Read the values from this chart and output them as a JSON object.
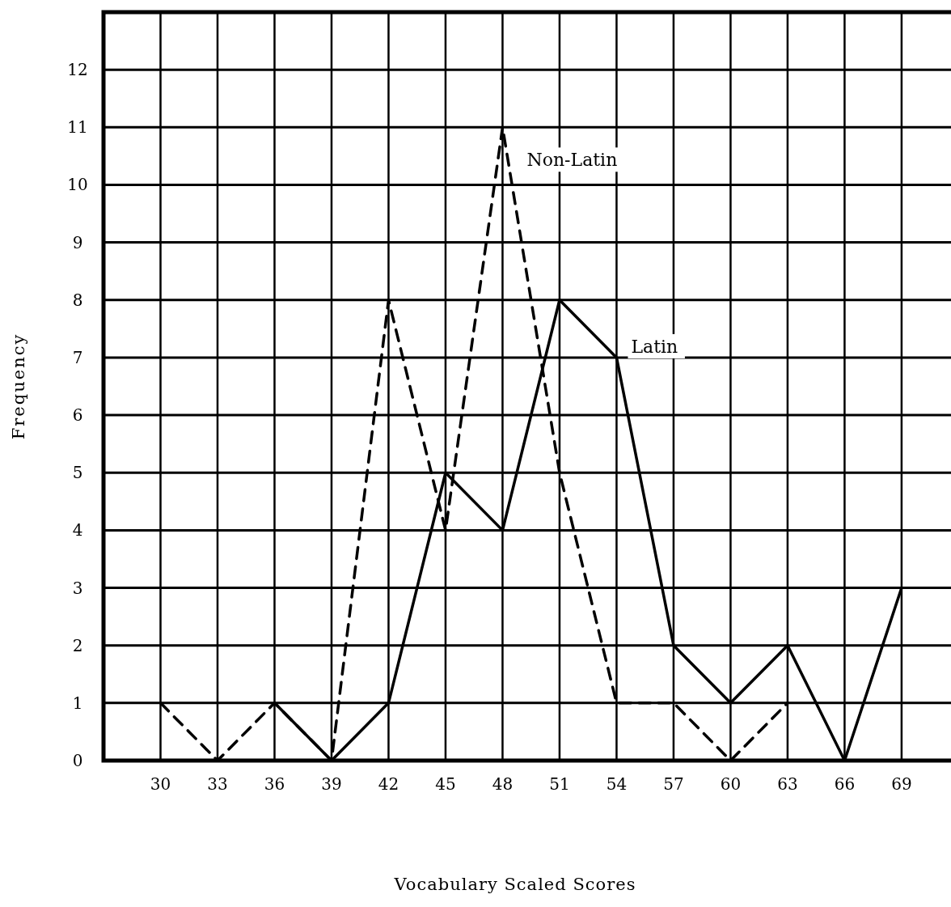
{
  "chart_data": {
    "type": "line",
    "xlabel": "Vocabulary Scaled Scores",
    "ylabel": "Frequency",
    "x": [
      30,
      33,
      36,
      39,
      42,
      45,
      48,
      51,
      54,
      57,
      60,
      63,
      66,
      69
    ],
    "xlim": [
      27,
      71.6
    ],
    "xticks": [
      30,
      33,
      36,
      39,
      42,
      45,
      48,
      51,
      54,
      57,
      60,
      63,
      66,
      69
    ],
    "ylim": [
      0,
      13
    ],
    "yticks": [
      0,
      1,
      2,
      3,
      4,
      5,
      6,
      7,
      8,
      9,
      10,
      11,
      12
    ],
    "grid": true,
    "marker": "none",
    "series": [
      {
        "name": "Non-Latin",
        "color": "#000000",
        "line_style": "dashed",
        "values": [
          1,
          0,
          1,
          0,
          8,
          4,
          11,
          5,
          1,
          1,
          0,
          1,
          null,
          null
        ]
      },
      {
        "name": "Latin",
        "color": "#000000",
        "line_style": "solid",
        "values": [
          null,
          null,
          1,
          0,
          1,
          5,
          4,
          8,
          7,
          2,
          1,
          2,
          0,
          3
        ]
      }
    ]
  }
}
